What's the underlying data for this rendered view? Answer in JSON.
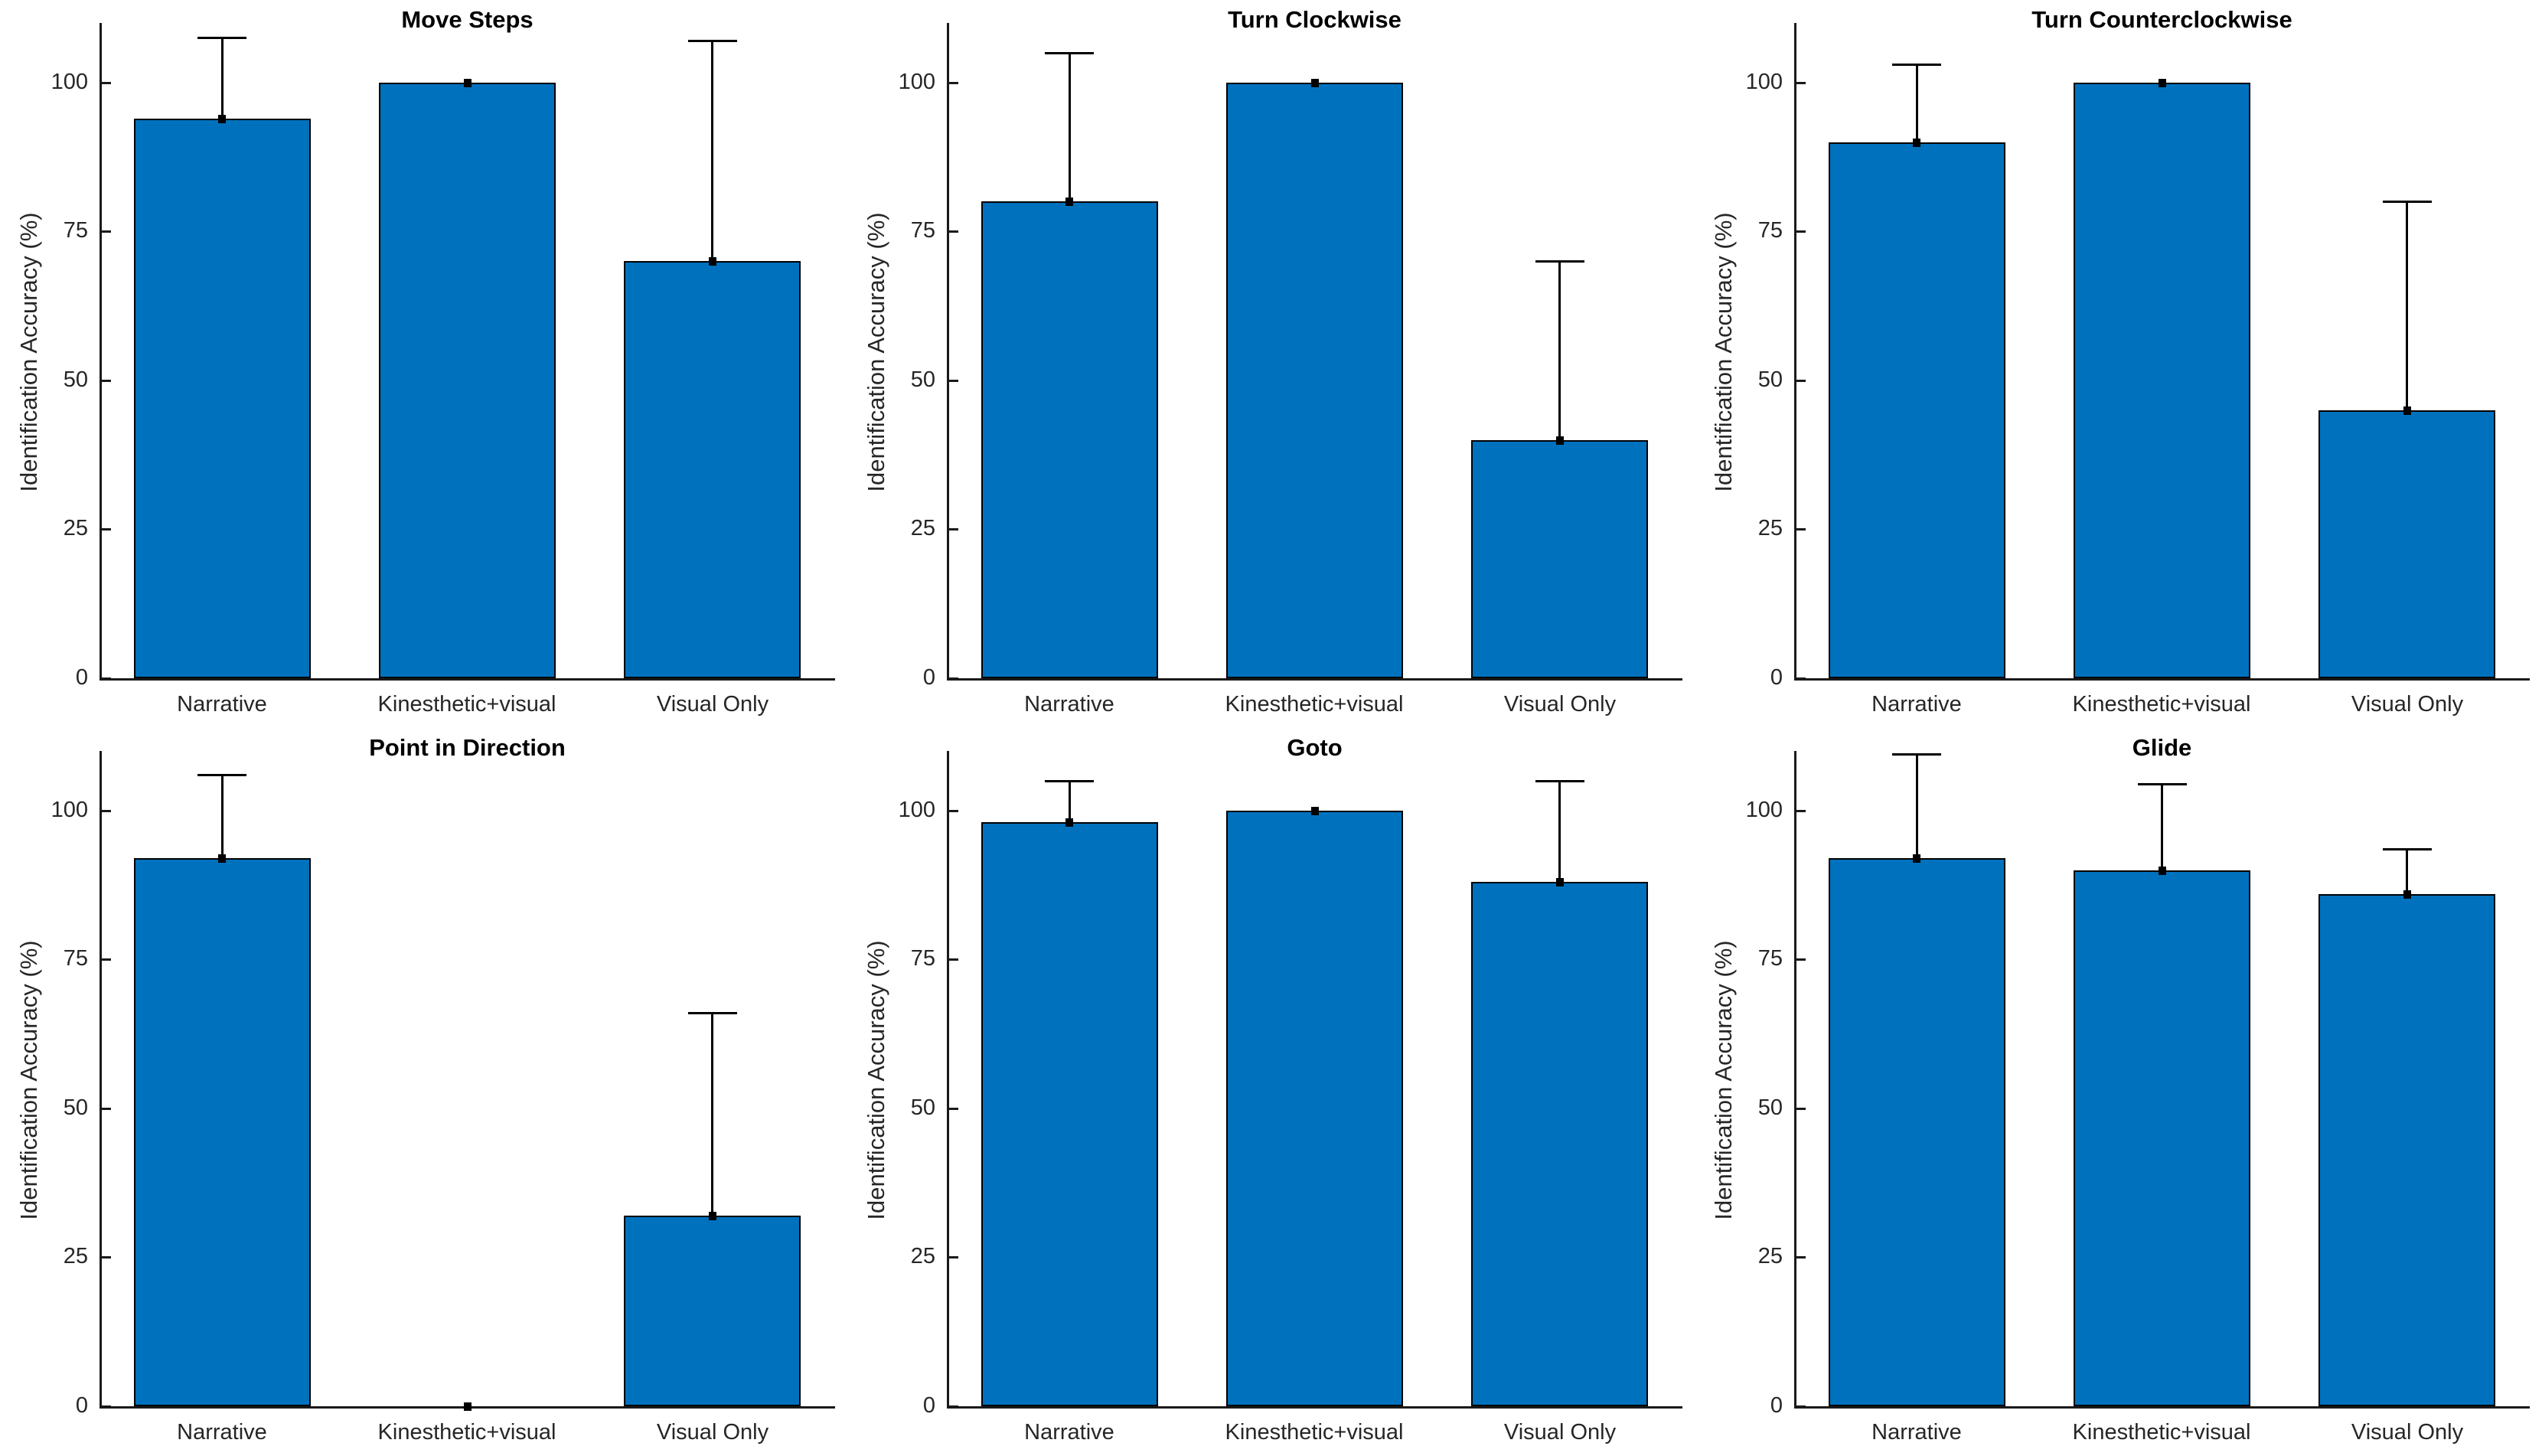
{
  "figure": {
    "background": "#ffffff",
    "bar_color": "#0072BD",
    "bar_edge_color": "#000000",
    "error_bar_color": "#000000",
    "axis_color": "#1a1a1a",
    "tick_label_color": "#262626",
    "rows": 2,
    "cols": 3,
    "ylabel": "Identification Accuracy (%)",
    "yticks": [
      0,
      25,
      50,
      75,
      100
    ],
    "ylim": [
      0,
      110
    ],
    "categories": [
      "Narrative",
      "Kinesthetic+visual",
      "Visual Only"
    ]
  },
  "chart_data": [
    {
      "type": "bar",
      "title": "Move Steps",
      "xlabel": "",
      "ylabel": "Identification Accuracy (%)",
      "categories": [
        "Narrative",
        "Kinesthetic+visual",
        "Visual Only"
      ],
      "values": [
        94,
        100,
        70
      ],
      "upper_error": [
        13.5,
        0,
        37
      ],
      "yticks": [
        0,
        25,
        50,
        75,
        100
      ],
      "ylim": [
        0,
        110
      ],
      "grid": false,
      "legend": null
    },
    {
      "type": "bar",
      "title": "Turn Clockwise",
      "xlabel": "",
      "ylabel": "Identification Accuracy (%)",
      "categories": [
        "Narrative",
        "Kinesthetic+visual",
        "Visual Only"
      ],
      "values": [
        80,
        100,
        40
      ],
      "upper_error": [
        25,
        0,
        30
      ],
      "yticks": [
        0,
        25,
        50,
        75,
        100
      ],
      "ylim": [
        0,
        110
      ],
      "grid": false,
      "legend": null
    },
    {
      "type": "bar",
      "title": "Turn Counterclockwise",
      "xlabel": "",
      "ylabel": "Identification Accuracy (%)",
      "categories": [
        "Narrative",
        "Kinesthetic+visual",
        "Visual Only"
      ],
      "values": [
        90,
        100,
        45
      ],
      "upper_error": [
        13,
        0,
        35
      ],
      "yticks": [
        0,
        25,
        50,
        75,
        100
      ],
      "ylim": [
        0,
        110
      ],
      "grid": false,
      "legend": null
    },
    {
      "type": "bar",
      "title": "Point in Direction",
      "xlabel": "",
      "ylabel": "Identification Accuracy (%)",
      "categories": [
        "Narrative",
        "Kinesthetic+visual",
        "Visual Only"
      ],
      "values": [
        92,
        0,
        32
      ],
      "upper_error": [
        14,
        0,
        34
      ],
      "yticks": [
        0,
        25,
        50,
        75,
        100
      ],
      "ylim": [
        0,
        110
      ],
      "grid": false,
      "legend": null
    },
    {
      "type": "bar",
      "title": "Goto",
      "xlabel": "",
      "ylabel": "Identification Accuracy (%)",
      "categories": [
        "Narrative",
        "Kinesthetic+visual",
        "Visual Only"
      ],
      "values": [
        98,
        100,
        88
      ],
      "upper_error": [
        7,
        0,
        17
      ],
      "yticks": [
        0,
        25,
        50,
        75,
        100
      ],
      "ylim": [
        0,
        110
      ],
      "grid": false,
      "legend": null
    },
    {
      "type": "bar",
      "title": "Glide",
      "xlabel": "",
      "ylabel": "Identification Accuracy (%)",
      "categories": [
        "Narrative",
        "Kinesthetic+visual",
        "Visual Only"
      ],
      "values": [
        92,
        90,
        86
      ],
      "upper_error": [
        17.5,
        14.5,
        7.5
      ],
      "yticks": [
        0,
        25,
        50,
        75,
        100
      ],
      "ylim": [
        0,
        110
      ],
      "grid": false,
      "legend": null
    }
  ]
}
